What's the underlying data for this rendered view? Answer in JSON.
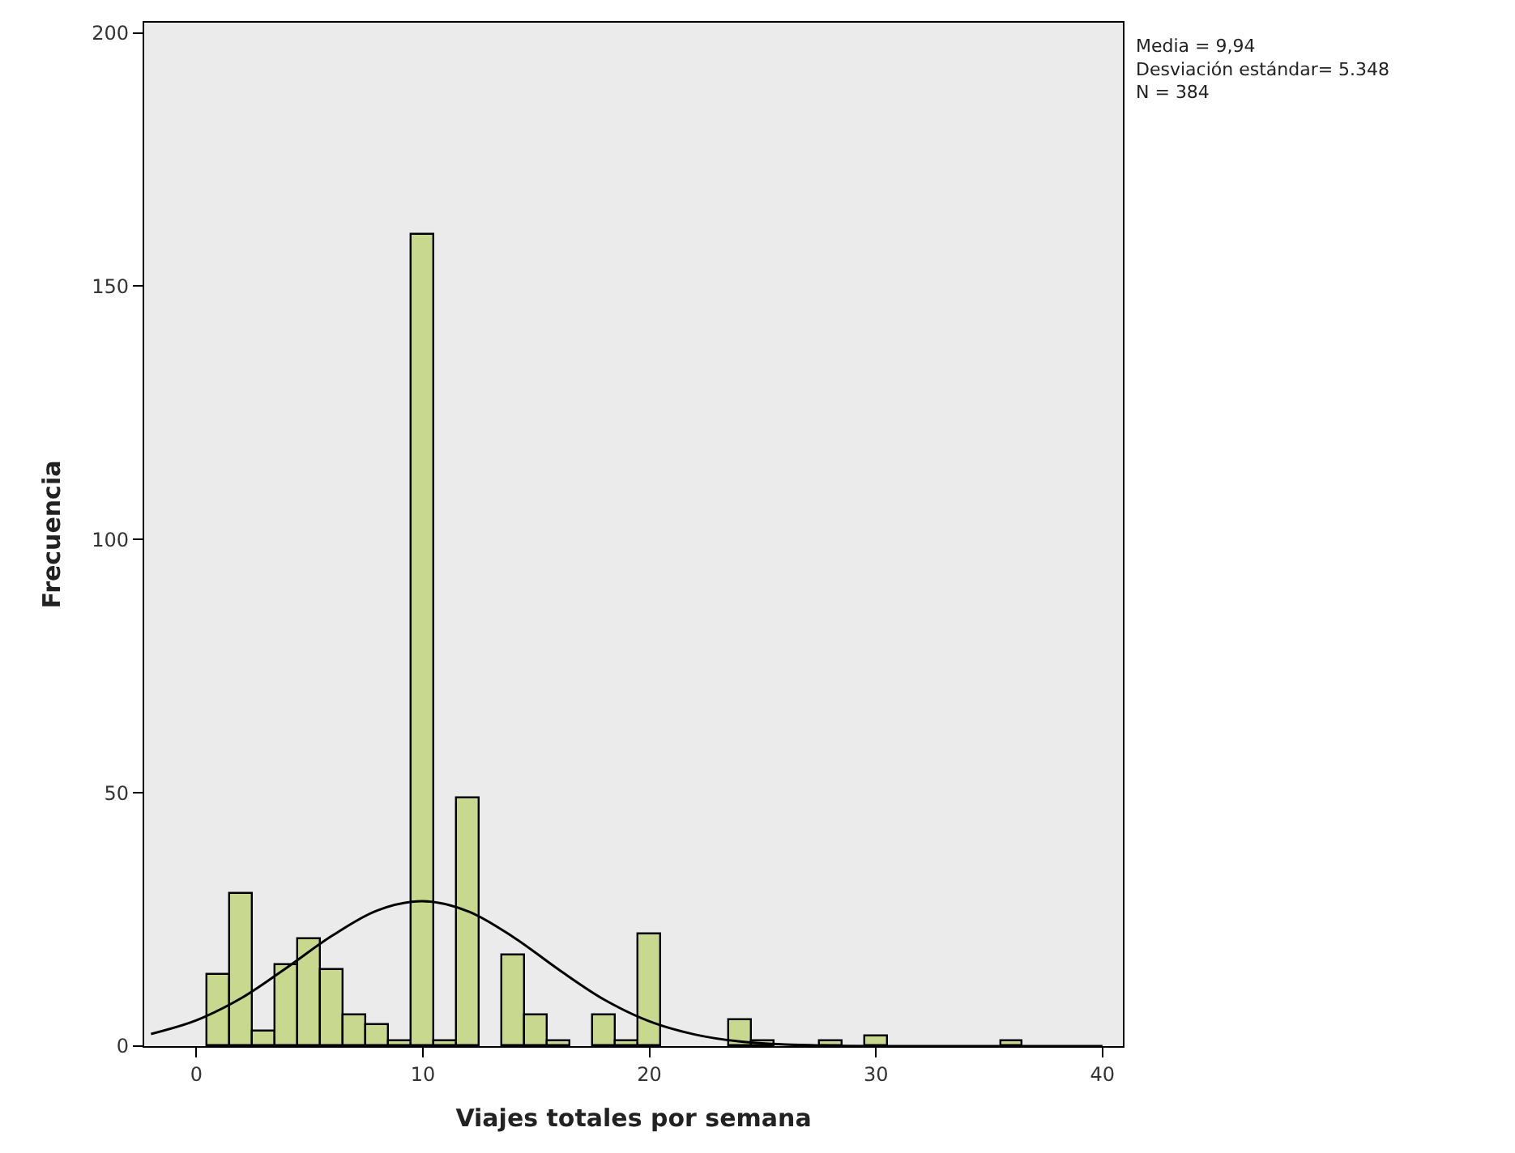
{
  "chart_data": {
    "type": "histogram",
    "xlabel": "Viajes totales por semana",
    "ylabel": "Frecuencia",
    "bins": [
      0.5,
      1.5,
      2.5,
      3.5,
      4.5,
      5.5,
      6.5,
      7.5,
      8.5,
      9.5,
      10.5,
      11.5,
      12.5,
      13.5,
      14.5,
      15.5,
      16.5,
      17.5,
      18.5,
      19.5,
      20.5,
      21.5,
      22.5,
      23.5,
      24.5,
      25.5,
      26.5,
      27.5,
      28.5,
      29.5,
      30.5,
      31.5,
      32.5,
      33.5,
      34.5,
      35.5,
      36.5
    ],
    "values": [
      14,
      30,
      3,
      16,
      21,
      15,
      6,
      4,
      1,
      160,
      1,
      49,
      0,
      18,
      6,
      1,
      0,
      6,
      1,
      22,
      0,
      0,
      0,
      5,
      1,
      0,
      0,
      1,
      0,
      2,
      0,
      0,
      0,
      0,
      0,
      1
    ],
    "color": "#c8d88e",
    "series": [
      {
        "type": "line",
        "color": "#000000",
        "x": [
          -2,
          0,
          2,
          4,
          6,
          8,
          10,
          12,
          14,
          16,
          18,
          20,
          22,
          24,
          26,
          28,
          30,
          34,
          40
        ],
        "values": [
          2.4,
          5.1,
          9.5,
          15.5,
          21.8,
          26.8,
          28.6,
          26.6,
          21.5,
          15.1,
          9.2,
          4.9,
          2.3,
          0.9,
          0.3,
          0.1,
          0,
          0,
          0
        ]
      }
    ],
    "xlim": [
      -2.3,
      40.9
    ],
    "xticks": [
      0,
      10,
      20,
      30,
      40
    ],
    "ylim": [
      0,
      202
    ],
    "yticks": [
      0,
      50,
      100,
      150,
      200
    ],
    "grid": false,
    "annotations": [
      "Media = 9,94",
      "Desviación estándar= 5.348",
      "N = 384"
    ]
  }
}
